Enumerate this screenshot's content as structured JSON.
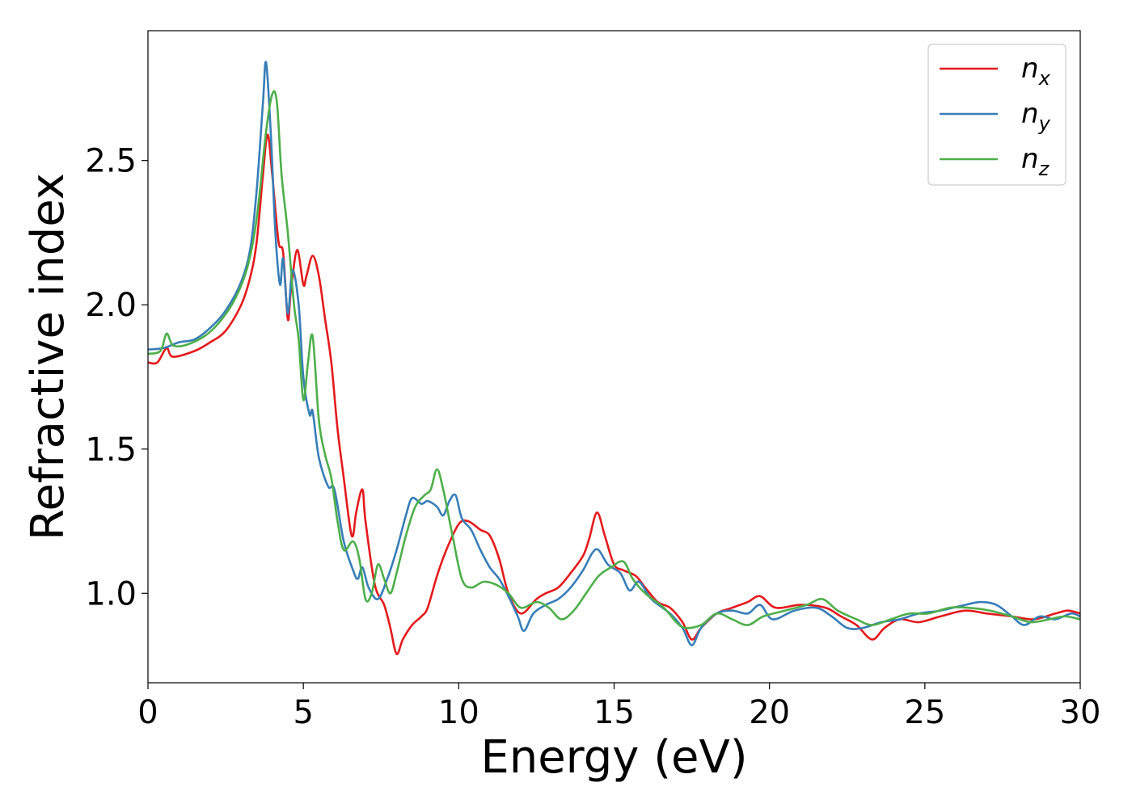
{
  "chart_data": {
    "type": "line",
    "xlabel": "Energy (eV)",
    "ylabel": "Refractive index",
    "xlim": [
      0,
      30
    ],
    "ylim": [
      0.69,
      2.95
    ],
    "x_ticks": [
      0,
      5,
      10,
      15,
      20,
      25,
      30
    ],
    "y_ticks": [
      1.0,
      1.5,
      2.0,
      2.5
    ],
    "x_tick_labels": [
      "0",
      "5",
      "10",
      "15",
      "20",
      "25",
      "30"
    ],
    "y_tick_labels": [
      "1.0",
      "1.5",
      "2.0",
      "2.5"
    ],
    "grid": false,
    "legend_position": "top-right",
    "series": [
      {
        "name": "n",
        "subscript": "x",
        "color": "#e41a1c",
        "points": [
          [
            0,
            1.8
          ],
          [
            0.3,
            1.8
          ],
          [
            0.6,
            1.85
          ],
          [
            0.8,
            1.82
          ],
          [
            1.5,
            1.84
          ],
          [
            2.0,
            1.87
          ],
          [
            2.5,
            1.91
          ],
          [
            3.0,
            2.0
          ],
          [
            3.3,
            2.1
          ],
          [
            3.5,
            2.22
          ],
          [
            3.7,
            2.45
          ],
          [
            3.85,
            2.59
          ],
          [
            4.0,
            2.45
          ],
          [
            4.2,
            2.22
          ],
          [
            4.35,
            2.18
          ],
          [
            4.5,
            1.95
          ],
          [
            4.6,
            2.05
          ],
          [
            4.8,
            2.19
          ],
          [
            5.0,
            2.07
          ],
          [
            5.1,
            2.1
          ],
          [
            5.3,
            2.17
          ],
          [
            5.5,
            2.1
          ],
          [
            5.7,
            1.95
          ],
          [
            5.9,
            1.8
          ],
          [
            6.1,
            1.57
          ],
          [
            6.3,
            1.4
          ],
          [
            6.5,
            1.23
          ],
          [
            6.6,
            1.2
          ],
          [
            6.7,
            1.28
          ],
          [
            6.9,
            1.36
          ],
          [
            7.0,
            1.25
          ],
          [
            7.3,
            1.03
          ],
          [
            7.6,
            0.96
          ],
          [
            7.8,
            0.88
          ],
          [
            8.0,
            0.79
          ],
          [
            8.2,
            0.84
          ],
          [
            8.5,
            0.89
          ],
          [
            8.8,
            0.92
          ],
          [
            9.0,
            0.95
          ],
          [
            9.3,
            1.06
          ],
          [
            9.6,
            1.15
          ],
          [
            10.0,
            1.24
          ],
          [
            10.3,
            1.25
          ],
          [
            10.7,
            1.22
          ],
          [
            11.0,
            1.2
          ],
          [
            11.3,
            1.12
          ],
          [
            11.6,
            1.0
          ],
          [
            12.0,
            0.93
          ],
          [
            12.5,
            0.98
          ],
          [
            12.8,
            1.0
          ],
          [
            13.2,
            1.02
          ],
          [
            13.6,
            1.07
          ],
          [
            14.0,
            1.13
          ],
          [
            14.2,
            1.19
          ],
          [
            14.45,
            1.28
          ],
          [
            14.7,
            1.2
          ],
          [
            15.0,
            1.1
          ],
          [
            15.3,
            1.08
          ],
          [
            15.7,
            1.06
          ],
          [
            16.0,
            1.02
          ],
          [
            16.4,
            0.97
          ],
          [
            16.8,
            0.95
          ],
          [
            17.2,
            0.9
          ],
          [
            17.5,
            0.84
          ],
          [
            17.8,
            0.88
          ],
          [
            18.3,
            0.93
          ],
          [
            18.8,
            0.95
          ],
          [
            19.3,
            0.97
          ],
          [
            19.7,
            0.99
          ],
          [
            20.2,
            0.95
          ],
          [
            21.0,
            0.96
          ],
          [
            21.8,
            0.95
          ],
          [
            22.3,
            0.92
          ],
          [
            22.8,
            0.89
          ],
          [
            23.3,
            0.84
          ],
          [
            23.7,
            0.88
          ],
          [
            24.2,
            0.91
          ],
          [
            24.8,
            0.9
          ],
          [
            25.5,
            0.92
          ],
          [
            26.3,
            0.94
          ],
          [
            27.0,
            0.93
          ],
          [
            27.8,
            0.92
          ],
          [
            28.5,
            0.91
          ],
          [
            29.2,
            0.93
          ],
          [
            29.6,
            0.94
          ],
          [
            30.0,
            0.93
          ]
        ]
      },
      {
        "name": "n",
        "subscript": "y",
        "color": "#377eb8",
        "points": [
          [
            0,
            1.845
          ],
          [
            0.5,
            1.85
          ],
          [
            1.0,
            1.87
          ],
          [
            1.5,
            1.88
          ],
          [
            2.0,
            1.92
          ],
          [
            2.5,
            1.98
          ],
          [
            3.0,
            2.08
          ],
          [
            3.3,
            2.2
          ],
          [
            3.5,
            2.4
          ],
          [
            3.7,
            2.7
          ],
          [
            3.8,
            2.84
          ],
          [
            3.95,
            2.6
          ],
          [
            4.1,
            2.25
          ],
          [
            4.25,
            2.07
          ],
          [
            4.35,
            2.16
          ],
          [
            4.5,
            1.97
          ],
          [
            4.65,
            2.12
          ],
          [
            4.85,
            2.0
          ],
          [
            5.0,
            1.75
          ],
          [
            5.2,
            1.62
          ],
          [
            5.3,
            1.63
          ],
          [
            5.5,
            1.47
          ],
          [
            5.8,
            1.37
          ],
          [
            6.0,
            1.36
          ],
          [
            6.3,
            1.18
          ],
          [
            6.6,
            1.08
          ],
          [
            6.75,
            1.05
          ],
          [
            6.9,
            1.09
          ],
          [
            7.1,
            1.02
          ],
          [
            7.4,
            0.98
          ],
          [
            7.7,
            1.05
          ],
          [
            8.0,
            1.15
          ],
          [
            8.3,
            1.27
          ],
          [
            8.5,
            1.33
          ],
          [
            8.8,
            1.31
          ],
          [
            9.0,
            1.32
          ],
          [
            9.3,
            1.3
          ],
          [
            9.5,
            1.27
          ],
          [
            9.7,
            1.32
          ],
          [
            9.9,
            1.34
          ],
          [
            10.1,
            1.26
          ],
          [
            10.4,
            1.22
          ],
          [
            10.7,
            1.15
          ],
          [
            11.0,
            1.09
          ],
          [
            11.3,
            1.05
          ],
          [
            11.6,
            0.99
          ],
          [
            11.9,
            0.92
          ],
          [
            12.1,
            0.87
          ],
          [
            12.4,
            0.93
          ],
          [
            12.8,
            0.96
          ],
          [
            13.2,
            0.98
          ],
          [
            13.6,
            1.02
          ],
          [
            14.0,
            1.08
          ],
          [
            14.3,
            1.14
          ],
          [
            14.5,
            1.15
          ],
          [
            14.8,
            1.1
          ],
          [
            15.2,
            1.07
          ],
          [
            15.5,
            1.01
          ],
          [
            15.8,
            1.04
          ],
          [
            16.2,
            0.98
          ],
          [
            16.8,
            0.93
          ],
          [
            17.2,
            0.88
          ],
          [
            17.5,
            0.82
          ],
          [
            17.8,
            0.88
          ],
          [
            18.3,
            0.93
          ],
          [
            18.8,
            0.94
          ],
          [
            19.3,
            0.93
          ],
          [
            19.7,
            0.96
          ],
          [
            20.1,
            0.91
          ],
          [
            20.8,
            0.94
          ],
          [
            21.5,
            0.95
          ],
          [
            22.0,
            0.92
          ],
          [
            22.5,
            0.88
          ],
          [
            23.0,
            0.88
          ],
          [
            23.6,
            0.9
          ],
          [
            24.2,
            0.91
          ],
          [
            24.8,
            0.93
          ],
          [
            25.5,
            0.94
          ],
          [
            26.3,
            0.96
          ],
          [
            26.8,
            0.97
          ],
          [
            27.3,
            0.96
          ],
          [
            27.8,
            0.92
          ],
          [
            28.2,
            0.89
          ],
          [
            28.7,
            0.92
          ],
          [
            29.2,
            0.91
          ],
          [
            29.7,
            0.93
          ],
          [
            30.0,
            0.92
          ]
        ]
      },
      {
        "name": "n",
        "subscript": "z",
        "color": "#4daf4a",
        "points": [
          [
            0,
            1.83
          ],
          [
            0.4,
            1.84
          ],
          [
            0.6,
            1.9
          ],
          [
            0.8,
            1.86
          ],
          [
            1.2,
            1.86
          ],
          [
            1.8,
            1.89
          ],
          [
            2.3,
            1.94
          ],
          [
            2.8,
            2.02
          ],
          [
            3.2,
            2.13
          ],
          [
            3.5,
            2.3
          ],
          [
            3.8,
            2.6
          ],
          [
            4.0,
            2.73
          ],
          [
            4.15,
            2.7
          ],
          [
            4.3,
            2.45
          ],
          [
            4.5,
            2.25
          ],
          [
            4.7,
            2.0
          ],
          [
            4.85,
            1.88
          ],
          [
            5.0,
            1.67
          ],
          [
            5.15,
            1.8
          ],
          [
            5.3,
            1.89
          ],
          [
            5.5,
            1.6
          ],
          [
            5.7,
            1.48
          ],
          [
            5.9,
            1.4
          ],
          [
            6.1,
            1.25
          ],
          [
            6.3,
            1.15
          ],
          [
            6.6,
            1.18
          ],
          [
            6.8,
            1.12
          ],
          [
            7.0,
            0.98
          ],
          [
            7.2,
            1.0
          ],
          [
            7.4,
            1.1
          ],
          [
            7.6,
            1.05
          ],
          [
            7.8,
            1.0
          ],
          [
            8.0,
            1.07
          ],
          [
            8.3,
            1.2
          ],
          [
            8.6,
            1.3
          ],
          [
            8.9,
            1.34
          ],
          [
            9.1,
            1.36
          ],
          [
            9.3,
            1.43
          ],
          [
            9.5,
            1.36
          ],
          [
            9.8,
            1.2
          ],
          [
            10.1,
            1.05
          ],
          [
            10.4,
            1.02
          ],
          [
            10.8,
            1.04
          ],
          [
            11.2,
            1.03
          ],
          [
            11.6,
            1.0
          ],
          [
            12.0,
            0.95
          ],
          [
            12.5,
            0.97
          ],
          [
            12.9,
            0.95
          ],
          [
            13.3,
            0.91
          ],
          [
            13.7,
            0.94
          ],
          [
            14.1,
            1.0
          ],
          [
            14.5,
            1.06
          ],
          [
            14.9,
            1.09
          ],
          [
            15.3,
            1.11
          ],
          [
            15.6,
            1.05
          ],
          [
            16.0,
            1.0
          ],
          [
            16.6,
            0.95
          ],
          [
            17.0,
            0.9
          ],
          [
            17.3,
            0.88
          ],
          [
            17.8,
            0.89
          ],
          [
            18.3,
            0.93
          ],
          [
            18.8,
            0.91
          ],
          [
            19.3,
            0.89
          ],
          [
            19.8,
            0.92
          ],
          [
            20.5,
            0.94
          ],
          [
            21.2,
            0.96
          ],
          [
            21.7,
            0.98
          ],
          [
            22.2,
            0.94
          ],
          [
            22.8,
            0.91
          ],
          [
            23.3,
            0.89
          ],
          [
            23.9,
            0.91
          ],
          [
            24.5,
            0.93
          ],
          [
            25.1,
            0.93
          ],
          [
            25.8,
            0.95
          ],
          [
            26.4,
            0.95
          ],
          [
            27.1,
            0.94
          ],
          [
            27.8,
            0.92
          ],
          [
            28.4,
            0.9
          ],
          [
            29.0,
            0.91
          ],
          [
            29.5,
            0.92
          ],
          [
            30.0,
            0.91
          ]
        ]
      }
    ]
  }
}
